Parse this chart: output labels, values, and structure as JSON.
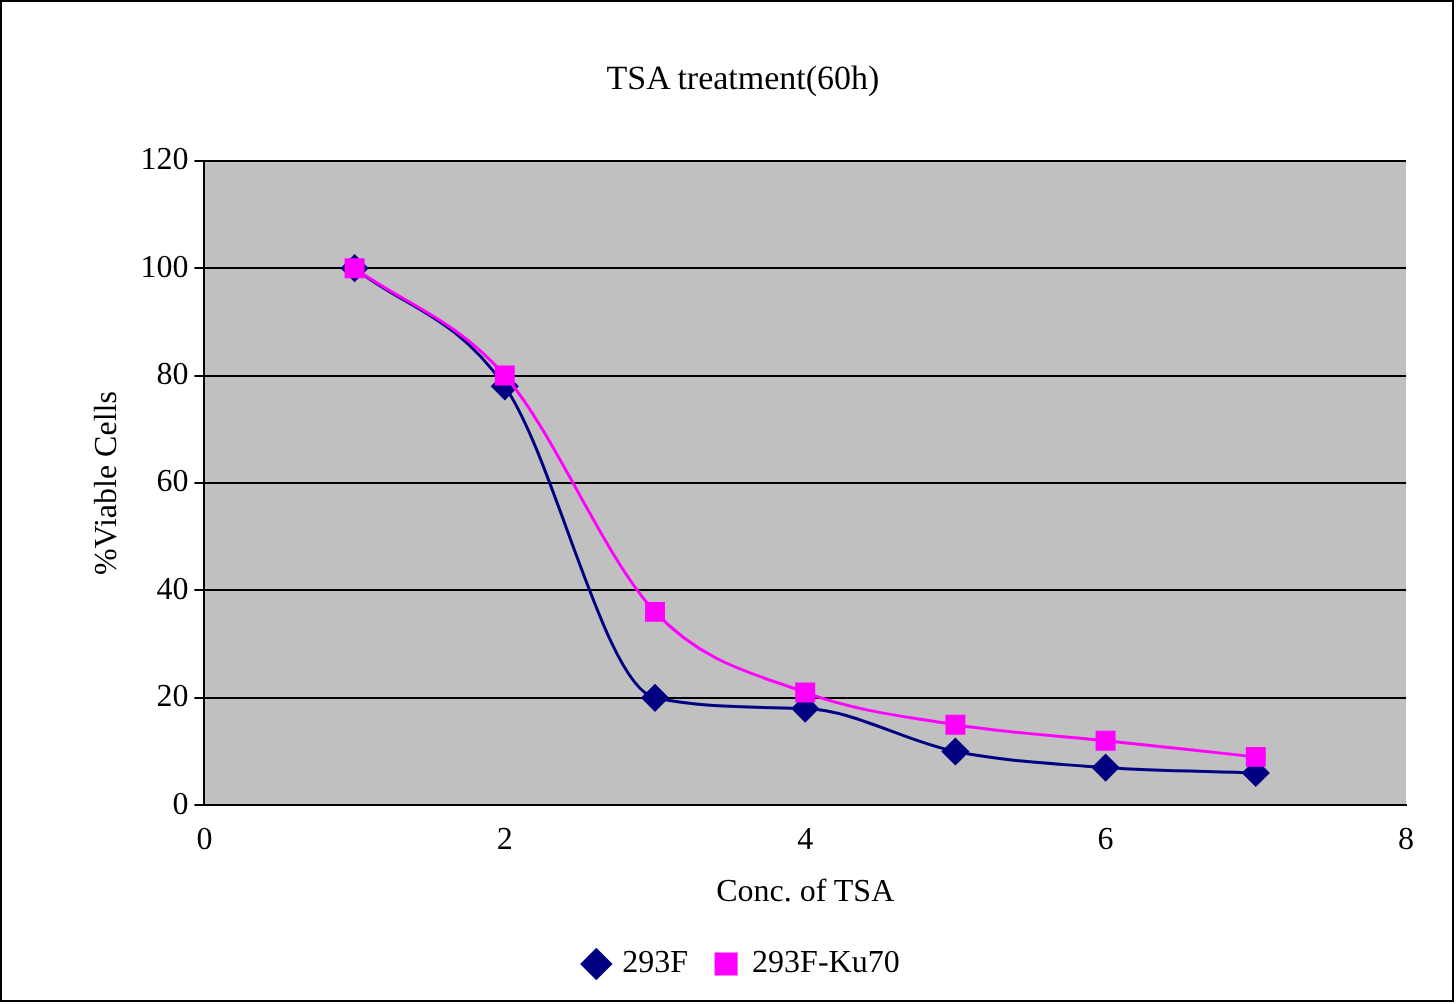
{
  "chart_data": {
    "type": "line",
    "title": "TSA treatment(60h)",
    "xlabel": "Conc. of TSA",
    "ylabel": "%Viable Cells",
    "xlim": [
      0,
      8
    ],
    "xticks": [
      0,
      2,
      4,
      6,
      8
    ],
    "ylim": [
      0,
      120
    ],
    "yticks": [
      0,
      20,
      40,
      60,
      80,
      100,
      120
    ],
    "grid": "y",
    "legend": "bottom",
    "series": [
      {
        "name": "293F",
        "color": "#000080",
        "x": [
          1,
          2,
          3,
          4,
          5,
          6,
          7
        ],
        "values": [
          100,
          78,
          20,
          18,
          10,
          7,
          6
        ],
        "marker": "diamond"
      },
      {
        "name": "293F-Ku70",
        "color": "#ff00ff",
        "x": [
          1,
          2,
          3,
          4,
          5,
          6,
          7
        ],
        "values": [
          100,
          80,
          36,
          21,
          15,
          12,
          9
        ],
        "marker": "square"
      }
    ]
  }
}
